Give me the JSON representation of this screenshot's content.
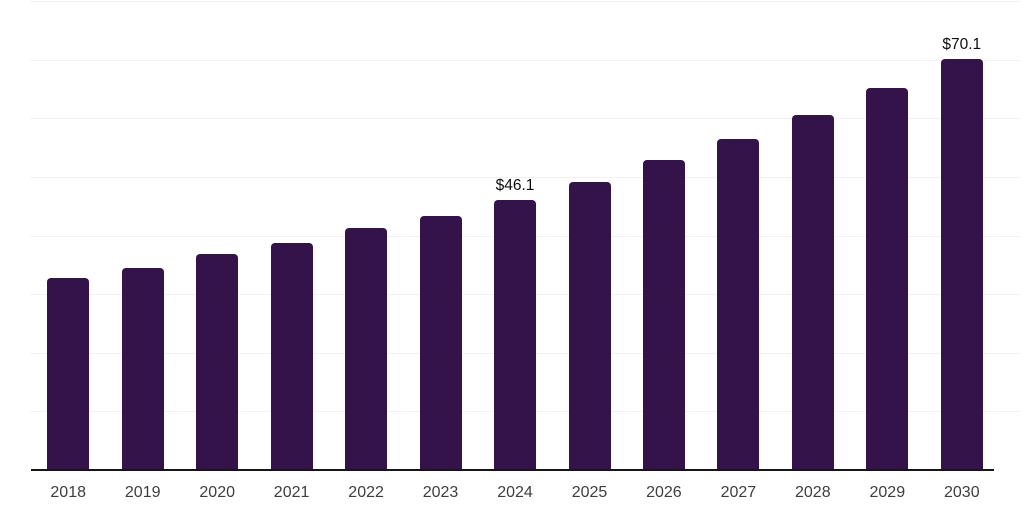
{
  "colors": {
    "background": "#ffffff",
    "bar": "#331349",
    "gridline": "#f2f2f4",
    "axis": "#161616",
    "tick_label": "#3e3e3e",
    "data_label": "#0f0f0f"
  },
  "chart_data": {
    "type": "bar",
    "title": "",
    "xlabel": "",
    "ylabel": "",
    "categories": [
      "2018",
      "2019",
      "2020",
      "2021",
      "2022",
      "2023",
      "2024",
      "2025",
      "2026",
      "2027",
      "2028",
      "2029",
      "2030"
    ],
    "values": [
      32.8,
      34.5,
      36.9,
      38.8,
      41.2,
      43.4,
      46.1,
      49.2,
      52.8,
      56.4,
      60.5,
      65.1,
      70.1
    ],
    "labels": [
      "",
      "",
      "",
      "",
      "",
      "",
      "$46.1",
      "",
      "",
      "",
      "",
      "",
      "$70.1"
    ],
    "unit_prefix": "$",
    "ylim": [
      0,
      80
    ],
    "grid_step": 10,
    "grid": "horizontal-only",
    "y_axis_tick_labels_visible": false,
    "legend_position": "none",
    "labeled_points": [
      {
        "category": "2024",
        "label": "$46.1"
      },
      {
        "category": "2030",
        "label": "$70.1"
      }
    ]
  }
}
